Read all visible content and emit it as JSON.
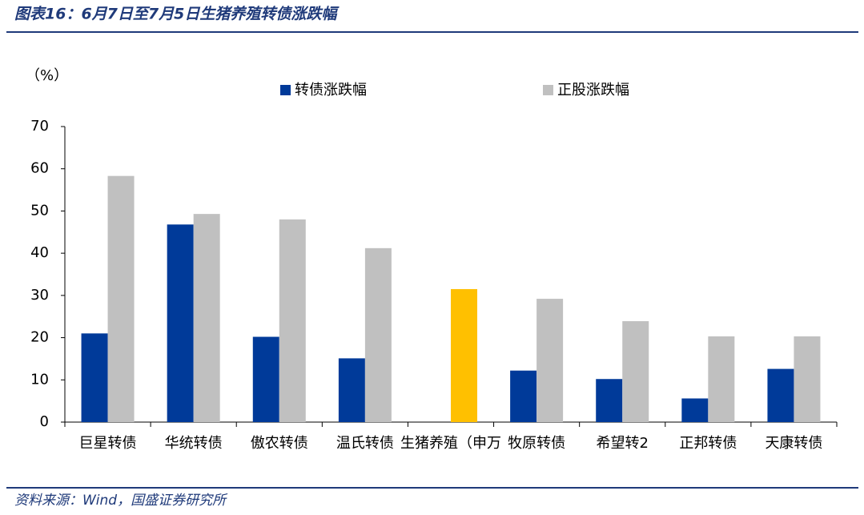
{
  "chart_data": {
    "type": "bar",
    "title": "图表16：6月7日至7月5日生猪养殖转债涨跌幅",
    "y_label": "（%）",
    "source": "资料来源：Wind，国盛证券研究所",
    "categories": [
      "巨星转债",
      "华统转债",
      "傲农转债",
      "温氏转债",
      "生猪养殖（申万",
      "牧原转债",
      "希望转2",
      "正邦转债",
      "天康转债"
    ],
    "series": [
      {
        "name": "转债涨跌幅",
        "color": "#003a99",
        "values": [
          21,
          46.8,
          20.2,
          15.1,
          null,
          12.2,
          10.2,
          5.6,
          12.6
        ]
      },
      {
        "name": "正股涨跌幅",
        "color": "#c0c0c0",
        "point_colors": [
          null,
          null,
          null,
          null,
          "#ffc000",
          null,
          null,
          null,
          null
        ],
        "values": [
          58.3,
          49.3,
          48,
          41.2,
          31.5,
          29.2,
          23.9,
          20.3,
          20.3
        ]
      }
    ],
    "ylim": [
      0,
      70
    ],
    "yticks": [
      0,
      10,
      20,
      30,
      40,
      50,
      60,
      70
    ],
    "grid": false,
    "legend": "top"
  }
}
